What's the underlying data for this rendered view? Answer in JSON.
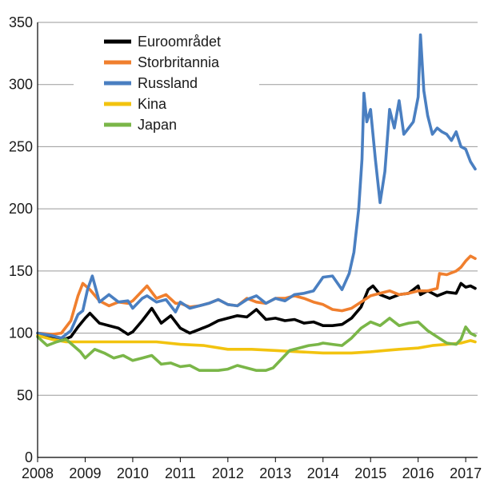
{
  "chart_data": {
    "type": "line",
    "title": "",
    "xlabel": "",
    "ylabel": "",
    "xlim": [
      2008,
      2017.25
    ],
    "ylim": [
      0,
      350
    ],
    "yticks": [
      0,
      50,
      100,
      150,
      200,
      250,
      300,
      350
    ],
    "xticks": [
      "2008",
      "2009",
      "2010",
      "2011",
      "2012",
      "2013",
      "2014",
      "2015",
      "2016",
      "2017"
    ],
    "grid": "horizontal",
    "legend_position": "top-left",
    "series": [
      {
        "name": "Euroområdet",
        "color": "#000000",
        "x": [
          2008,
          2008.3,
          2008.5,
          2008.7,
          2008.85,
          2009.0,
          2009.1,
          2009.3,
          2009.5,
          2009.7,
          2009.9,
          2010.0,
          2010.2,
          2010.4,
          2010.6,
          2010.8,
          2011.0,
          2011.2,
          2011.4,
          2011.6,
          2011.8,
          2012.0,
          2012.2,
          2012.4,
          2012.6,
          2012.8,
          2013.0,
          2013.2,
          2013.4,
          2013.6,
          2013.8,
          2014.0,
          2014.2,
          2014.4,
          2014.6,
          2014.8,
          2014.95,
          2015.05,
          2015.2,
          2015.4,
          2015.6,
          2015.8,
          2016.0,
          2016.05,
          2016.2,
          2016.4,
          2016.6,
          2016.8,
          2016.9,
          2017.0,
          2017.1,
          2017.2
        ],
        "y": [
          100,
          96,
          94,
          97,
          105,
          112,
          116,
          108,
          106,
          104,
          99,
          101,
          110,
          120,
          108,
          114,
          104,
          100,
          103,
          106,
          110,
          112,
          114,
          113,
          119,
          111,
          112,
          110,
          111,
          108,
          109,
          106,
          106,
          107,
          112,
          121,
          135,
          138,
          131,
          128,
          131,
          132,
          138,
          131,
          134,
          130,
          133,
          132,
          140,
          137,
          138,
          136
        ]
      },
      {
        "name": "Storbritannia",
        "color": "#f07f2e",
        "x": [
          2008,
          2008.3,
          2008.5,
          2008.7,
          2008.85,
          2008.95,
          2009.1,
          2009.3,
          2009.5,
          2009.7,
          2009.9,
          2010.0,
          2010.2,
          2010.3,
          2010.5,
          2010.7,
          2010.9,
          2011.0,
          2011.2,
          2011.4,
          2011.6,
          2011.8,
          2012.0,
          2012.2,
          2012.4,
          2012.6,
          2012.8,
          2013.0,
          2013.2,
          2013.4,
          2013.6,
          2013.8,
          2014.0,
          2014.2,
          2014.4,
          2014.6,
          2014.8,
          2015.0,
          2015.2,
          2015.4,
          2015.6,
          2015.8,
          2016.0,
          2016.2,
          2016.4,
          2016.45,
          2016.6,
          2016.8,
          2016.9,
          2017.0,
          2017.1,
          2017.2
        ],
        "y": [
          100,
          99,
          100,
          110,
          130,
          140,
          135,
          126,
          122,
          125,
          124,
          126,
          134,
          138,
          128,
          131,
          124,
          124,
          121,
          122,
          124,
          127,
          123,
          122,
          128,
          125,
          124,
          128,
          128,
          130,
          128,
          125,
          123,
          119,
          118,
          120,
          125,
          130,
          132,
          134,
          131,
          132,
          134,
          134,
          136,
          148,
          147,
          150,
          153,
          158,
          162,
          160
        ]
      },
      {
        "name": "Russland",
        "color": "#4a7fc1",
        "x": [
          2008,
          2008.3,
          2008.5,
          2008.7,
          2008.85,
          2008.95,
          2009.05,
          2009.15,
          2009.3,
          2009.5,
          2009.7,
          2009.9,
          2010.0,
          2010.2,
          2010.3,
          2010.5,
          2010.7,
          2010.9,
          2011.0,
          2011.2,
          2011.4,
          2011.6,
          2011.8,
          2012.0,
          2012.2,
          2012.4,
          2012.6,
          2012.8,
          2013.0,
          2013.2,
          2013.4,
          2013.6,
          2013.8,
          2014.0,
          2014.2,
          2014.4,
          2014.55,
          2014.65,
          2014.75,
          2014.82,
          2014.86,
          2014.92,
          2015.0,
          2015.1,
          2015.2,
          2015.3,
          2015.4,
          2015.5,
          2015.6,
          2015.7,
          2015.8,
          2015.9,
          2016.0,
          2016.05,
          2016.12,
          2016.2,
          2016.3,
          2016.4,
          2016.5,
          2016.6,
          2016.7,
          2016.8,
          2016.9,
          2017.0,
          2017.1,
          2017.2
        ],
        "y": [
          100,
          98,
          96,
          102,
          115,
          118,
          135,
          146,
          125,
          131,
          125,
          126,
          120,
          128,
          130,
          125,
          127,
          117,
          125,
          120,
          122,
          124,
          127,
          123,
          122,
          127,
          130,
          124,
          128,
          126,
          131,
          132,
          134,
          145,
          146,
          135,
          148,
          165,
          200,
          240,
          293,
          270,
          280,
          240,
          205,
          230,
          280,
          265,
          287,
          260,
          265,
          270,
          290,
          340,
          295,
          275,
          260,
          265,
          262,
          260,
          255,
          262,
          250,
          248,
          238,
          232
        ]
      },
      {
        "name": "Kina",
        "color": "#f2c30f",
        "x": [
          2008,
          2008.3,
          2008.6,
          2009.0,
          2009.5,
          2010.0,
          2010.5,
          2011.0,
          2011.5,
          2012.0,
          2012.5,
          2013.0,
          2013.5,
          2014.0,
          2014.3,
          2014.6,
          2015.0,
          2015.3,
          2015.6,
          2016.0,
          2016.3,
          2016.6,
          2016.9,
          2017.1,
          2017.2
        ],
        "y": [
          98,
          95,
          93,
          93,
          93,
          93,
          93,
          91,
          90,
          87,
          87,
          86,
          85,
          84,
          84,
          84,
          85,
          86,
          87,
          88,
          90,
          91,
          92,
          94,
          93
        ]
      },
      {
        "name": "Japan",
        "color": "#7ab648",
        "x": [
          2008,
          2008.2,
          2008.4,
          2008.6,
          2008.75,
          2008.9,
          2009.0,
          2009.2,
          2009.4,
          2009.6,
          2009.8,
          2010.0,
          2010.2,
          2010.4,
          2010.6,
          2010.8,
          2011.0,
          2011.2,
          2011.4,
          2011.6,
          2011.8,
          2012.0,
          2012.2,
          2012.4,
          2012.6,
          2012.8,
          2012.95,
          2013.1,
          2013.3,
          2013.5,
          2013.7,
          2013.9,
          2014.0,
          2014.2,
          2014.4,
          2014.6,
          2014.8,
          2015.0,
          2015.2,
          2015.4,
          2015.6,
          2015.8,
          2016.0,
          2016.2,
          2016.4,
          2016.6,
          2016.8,
          2016.9,
          2017.0,
          2017.1,
          2017.2
        ],
        "y": [
          97,
          90,
          93,
          95,
          90,
          85,
          80,
          87,
          84,
          80,
          82,
          78,
          80,
          82,
          75,
          76,
          73,
          74,
          70,
          70,
          70,
          71,
          74,
          72,
          70,
          70,
          72,
          78,
          86,
          88,
          90,
          91,
          92,
          91,
          90,
          96,
          104,
          109,
          106,
          112,
          106,
          108,
          109,
          102,
          97,
          92,
          91,
          95,
          105,
          100,
          98
        ]
      }
    ]
  }
}
